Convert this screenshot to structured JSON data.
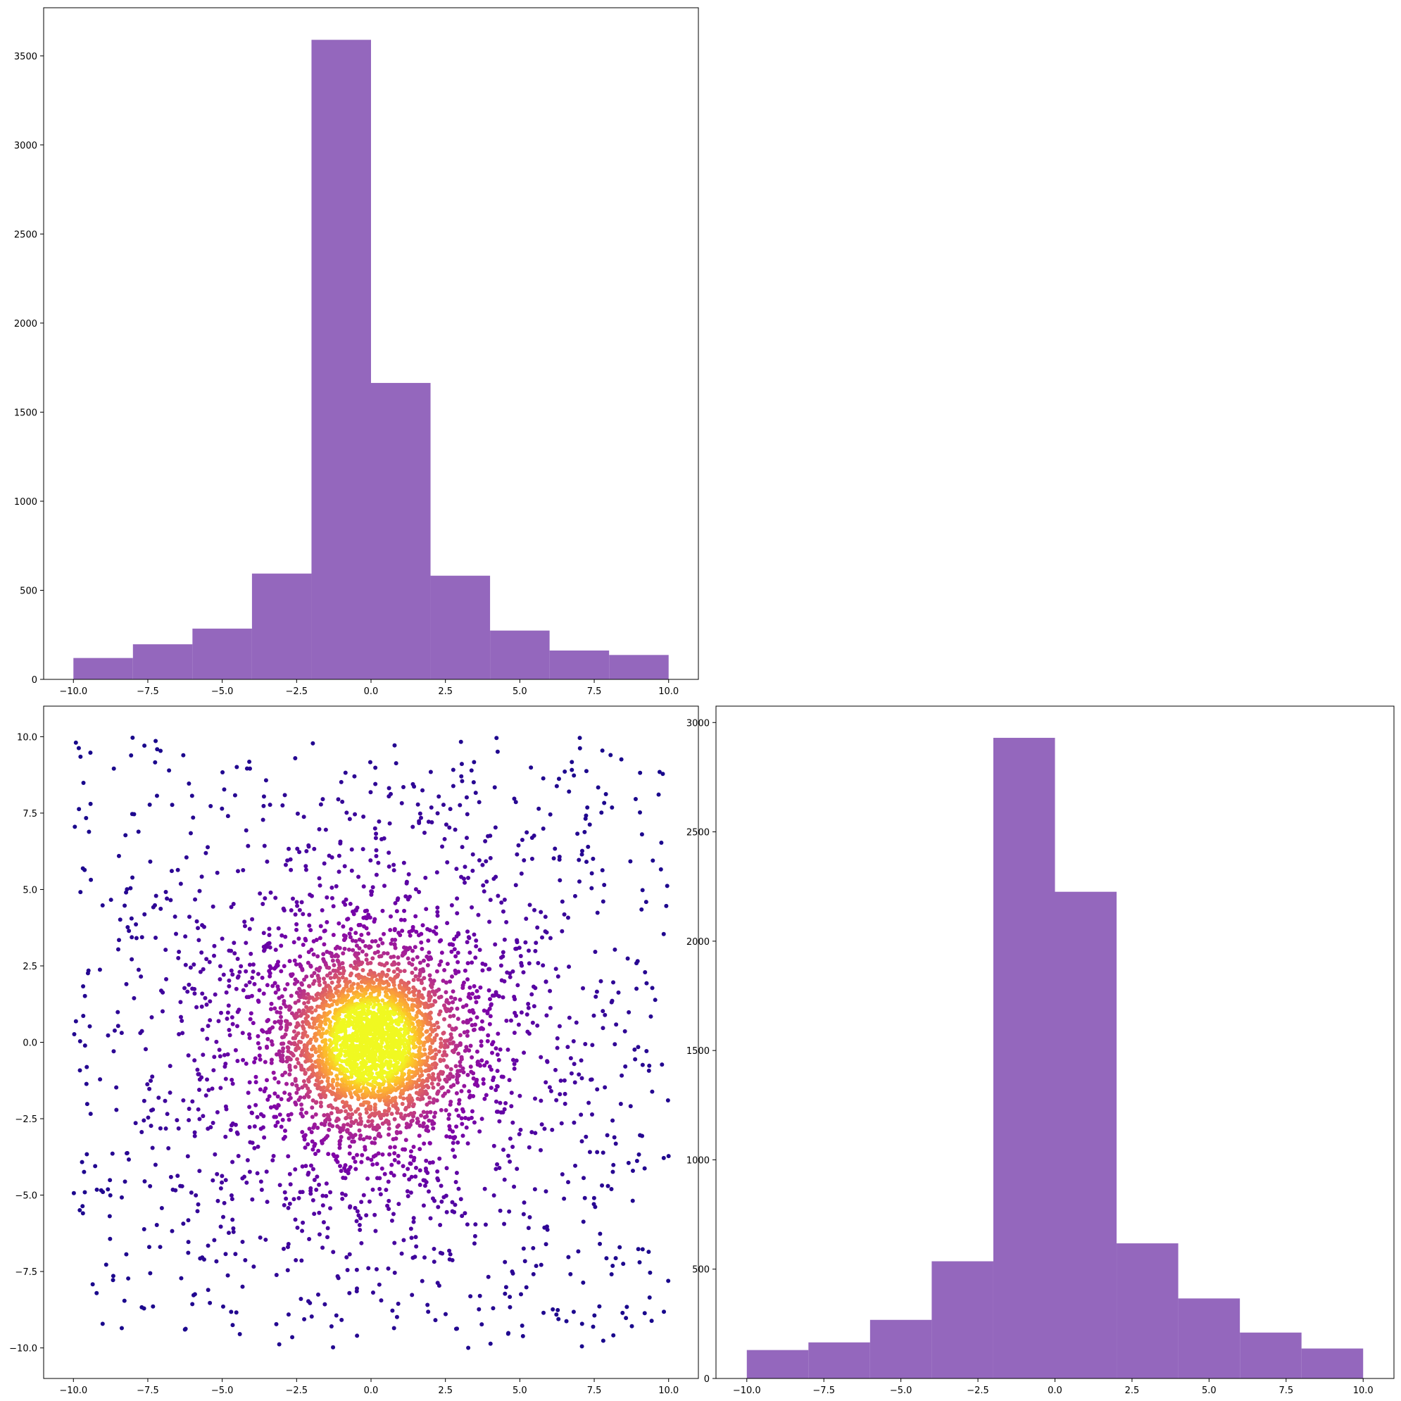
{
  "colors": {
    "hist_fill": "#9467bd",
    "axes_edge": "#000000",
    "scatter_colormap": "plasma"
  },
  "chart_data": [
    {
      "type": "bar",
      "subtype": "histogram",
      "panel": "top-left",
      "bin_edges": [
        -10,
        -8,
        -6,
        -4,
        -2,
        0,
        2,
        4,
        6,
        8,
        10
      ],
      "values": [
        120,
        197,
        285,
        594,
        3590,
        1664,
        582,
        274,
        162,
        137
      ],
      "xlim": [
        -11,
        11
      ],
      "ylim": [
        0,
        3770
      ],
      "xticks": [
        -10.0,
        -7.5,
        -5.0,
        -2.5,
        0.0,
        2.5,
        5.0,
        7.5,
        10.0
      ],
      "xtick_labels": [
        "−10.0",
        "−7.5",
        "−5.0",
        "−2.5",
        "0.0",
        "2.5",
        "5.0",
        "7.5",
        "10.0"
      ],
      "yticks": [
        0,
        500,
        1000,
        1500,
        2000,
        2500,
        3000,
        3500
      ],
      "ytick_labels": [
        "0",
        "500",
        "1000",
        "1500",
        "2000",
        "2500",
        "3000",
        "3500"
      ],
      "grid": false
    },
    {
      "type": "scatter",
      "panel": "bottom-left",
      "description_of_values": "density-colored scatter, dense cluster centered at (0, 0), sparse uniform background",
      "point_count": 4500,
      "center": [
        0.0,
        0.0
      ],
      "xlim": [
        -11,
        11
      ],
      "ylim": [
        -11,
        11
      ],
      "xticks": [
        -10.0,
        -7.5,
        -5.0,
        -2.5,
        0.0,
        2.5,
        5.0,
        7.5,
        10.0
      ],
      "xtick_labels": [
        "−10.0",
        "−7.5",
        "−5.0",
        "−2.5",
        "0.0",
        "2.5",
        "5.0",
        "7.5",
        "10.0"
      ],
      "yticks": [
        -10.0,
        -7.5,
        -5.0,
        -2.5,
        0.0,
        2.5,
        5.0,
        7.5,
        10.0
      ],
      "ytick_labels": [
        "−10.0",
        "−7.5",
        "−5.0",
        "−2.5",
        "0.0",
        "2.5",
        "5.0",
        "7.5",
        "10.0"
      ],
      "grid": false
    },
    {
      "type": "bar",
      "subtype": "histogram",
      "panel": "bottom-right",
      "bin_edges": [
        -10,
        -8,
        -6,
        -4,
        -2,
        0,
        2,
        4,
        6,
        8,
        10
      ],
      "values": [
        130,
        165,
        268,
        536,
        2930,
        2226,
        618,
        366,
        210,
        137
      ],
      "xlim": [
        -11,
        11
      ],
      "ylim": [
        0,
        3075
      ],
      "xticks": [
        -10.0,
        -7.5,
        -5.0,
        -2.5,
        0.0,
        2.5,
        5.0,
        7.5,
        10.0
      ],
      "xtick_labels": [
        "−10.0",
        "−7.5",
        "−5.0",
        "−2.5",
        "0.0",
        "2.5",
        "5.0",
        "7.5",
        "10.0"
      ],
      "yticks": [
        0,
        500,
        1000,
        1500,
        2000,
        2500,
        3000
      ],
      "ytick_labels": [
        "0",
        "500",
        "1000",
        "1500",
        "2000",
        "2500",
        "3000"
      ],
      "grid": false
    }
  ]
}
